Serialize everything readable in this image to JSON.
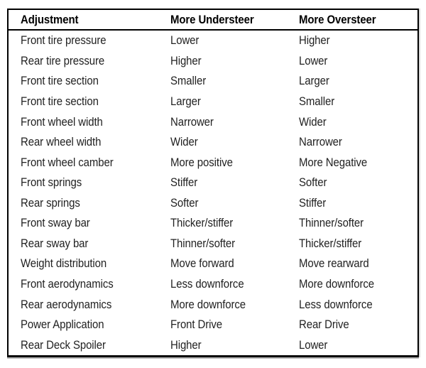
{
  "table": {
    "columns": [
      "Adjustment",
      "More Understeer",
      "More Oversteer"
    ],
    "rows": [
      [
        "Front tire pressure",
        "Lower",
        "Higher"
      ],
      [
        "Rear tire pressure",
        "Higher",
        "Lower"
      ],
      [
        "Front tire section",
        "Smaller",
        "Larger"
      ],
      [
        "Front tire section",
        "Larger",
        "Smaller"
      ],
      [
        "Front wheel width",
        "Narrower",
        "Wider"
      ],
      [
        "Rear wheel width",
        "Wider",
        "Narrower"
      ],
      [
        "Front wheel camber",
        "More positive",
        "More Negative"
      ],
      [
        "Front springs",
        "Stiffer",
        "Softer"
      ],
      [
        "Rear springs",
        "Softer",
        "Stiffer"
      ],
      [
        "Front sway bar",
        "Thicker/stiffer",
        "Thinner/softer"
      ],
      [
        "Rear sway bar",
        "Thinner/softer",
        "Thicker/stiffer"
      ],
      [
        "Weight distribution",
        "Move forward",
        "Move rearward"
      ],
      [
        "Front aerodynamics",
        "Less downforce",
        "More downforce"
      ],
      [
        "Rear aerodynamics",
        "More downforce",
        "Less downforce"
      ],
      [
        "Power Application",
        "Front Drive",
        "Rear Drive"
      ],
      [
        "Rear Deck Spoiler",
        "Higher",
        "Lower"
      ]
    ],
    "colors": {
      "border": "#000000",
      "header_text": "#000000",
      "body_text": "#222222",
      "background": "#ffffff"
    }
  }
}
